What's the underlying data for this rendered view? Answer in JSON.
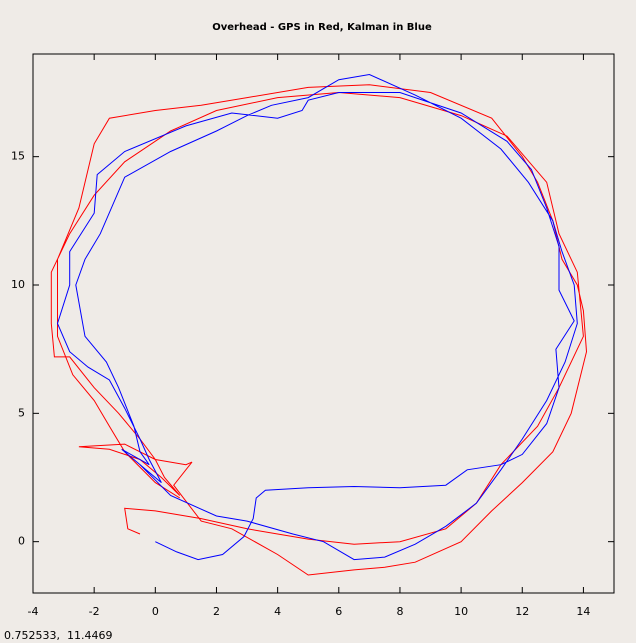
{
  "chart_data": {
    "type": "line",
    "title": "Overhead - GPS in Red, Kalman in Blue",
    "xlim": [
      -4,
      15
    ],
    "ylim": [
      -2,
      19
    ],
    "xticks": [
      -4,
      -2,
      0,
      2,
      4,
      6,
      8,
      10,
      12,
      14
    ],
    "yticks": [
      0,
      5,
      10,
      15
    ],
    "grid": false,
    "series": [
      {
        "name": "GPS",
        "color": "#ff0000",
        "x": [
          -0.5,
          -0.9,
          -1,
          0,
          1.5,
          3,
          4,
          5,
          6.5,
          8,
          9.5,
          10.5,
          11.3,
          12.5,
          13.2,
          14,
          13.8,
          13.2,
          12.8,
          11.5,
          10,
          8,
          6,
          4,
          2,
          0.5,
          -1,
          -2,
          -2.8,
          -3.4,
          -3.4,
          -3.3,
          -2.8,
          -2,
          -1.2,
          -0.5,
          0,
          0.3,
          0.8,
          0.2,
          -0.5,
          -1.5,
          -2.5,
          -1,
          0,
          1,
          1.2,
          0.6,
          1.5,
          2.5,
          4,
          5,
          6.5,
          7.5,
          8.5,
          10,
          11,
          12,
          13,
          13.6,
          14.1,
          14,
          13.8,
          13.3,
          13,
          12.5,
          12,
          11,
          9,
          7,
          5,
          3,
          1.5,
          0,
          -1.5,
          -2,
          -2.5,
          -3.2,
          -3.2,
          -2.7,
          -2,
          -1.5,
          -1,
          0,
          0.8
        ],
        "values": [
          0.3,
          0.5,
          1.3,
          1.2,
          0.9,
          0.5,
          0.3,
          0.1,
          -0.1,
          0,
          0.5,
          1.5,
          3,
          4.5,
          6,
          8,
          10.5,
          12,
          14,
          15.8,
          16.6,
          17.3,
          17.5,
          17.3,
          16.8,
          16,
          14.8,
          13.5,
          12,
          10.5,
          8.5,
          7.2,
          7.2,
          6,
          5,
          4,
          3.2,
          2.5,
          1.8,
          2.5,
          3.2,
          3.6,
          3.7,
          3.8,
          3.2,
          3.0,
          3.1,
          2.2,
          0.8,
          0.5,
          -0.5,
          -1.3,
          -1.1,
          -1,
          -0.8,
          0,
          1.2,
          2.3,
          3.5,
          5,
          7.4,
          9,
          10,
          11,
          12.5,
          14,
          15,
          16.5,
          17.5,
          17.8,
          17.7,
          17.3,
          17,
          16.8,
          16.5,
          15.5,
          13,
          11,
          8,
          6.5,
          5.5,
          4.5,
          3.5,
          2.3,
          1.7
        ]
      },
      {
        "name": "Kalman",
        "color": "#0000ff",
        "x": [
          0,
          0.7,
          1.4,
          2.2,
          2.9,
          3.2,
          3.3,
          3.6,
          5,
          6.5,
          8,
          9.5,
          10.2,
          11.3,
          12,
          12.8,
          13.2,
          13.1,
          13.7,
          13.2,
          13.2,
          12.8,
          12.3,
          11.5,
          10,
          8,
          6,
          5,
          4.8,
          4,
          2.5,
          1,
          -1,
          -1.9,
          -2,
          -2.8,
          -2.8,
          -3.2,
          -2.8,
          -2.2,
          -1.5,
          -1,
          -0.5,
          -0.2,
          0.2,
          -0.5,
          0.5,
          2,
          3,
          4.5,
          5.5,
          6.5,
          7.5,
          8.5,
          9.5,
          10.5,
          11.3,
          12,
          12.8,
          13.4,
          13.8,
          13.7,
          13.3,
          13,
          12.2,
          11.3,
          10,
          8.5,
          7,
          6,
          5,
          3.8,
          3,
          2,
          0.5,
          -1,
          -1.8,
          -2.3,
          -2.6,
          -2.3,
          -1.6,
          -1.2,
          -0.7,
          -0.5,
          -0.2,
          -1.1,
          0.2
        ],
        "values": [
          0,
          -0.4,
          -0.7,
          -0.5,
          0.2,
          0.9,
          1.7,
          2.0,
          2.1,
          2.15,
          2.1,
          2.2,
          2.8,
          3.0,
          3.4,
          4.6,
          6,
          7.5,
          8.6,
          9.8,
          11.5,
          13,
          14.5,
          15.6,
          16.7,
          17.5,
          17.5,
          17.2,
          16.8,
          16.5,
          16.7,
          16.2,
          15.2,
          14.3,
          12.8,
          11.3,
          10,
          8.5,
          7.4,
          6.8,
          6.3,
          5.2,
          4,
          3.2,
          2.3,
          3,
          1.8,
          1,
          0.8,
          0.3,
          0,
          -0.7,
          -0.6,
          -0.1,
          0.6,
          1.5,
          2.8,
          4,
          5.5,
          7,
          8.5,
          10,
          11.3,
          12.5,
          14,
          15.3,
          16.5,
          17.4,
          18.2,
          18,
          17.3,
          17,
          16.6,
          16,
          15.2,
          14.2,
          12,
          11,
          10,
          8,
          7,
          6,
          4.5,
          3.5,
          3,
          3.6,
          2.3
        ]
      }
    ],
    "status": "0.752533,  11.4469"
  }
}
